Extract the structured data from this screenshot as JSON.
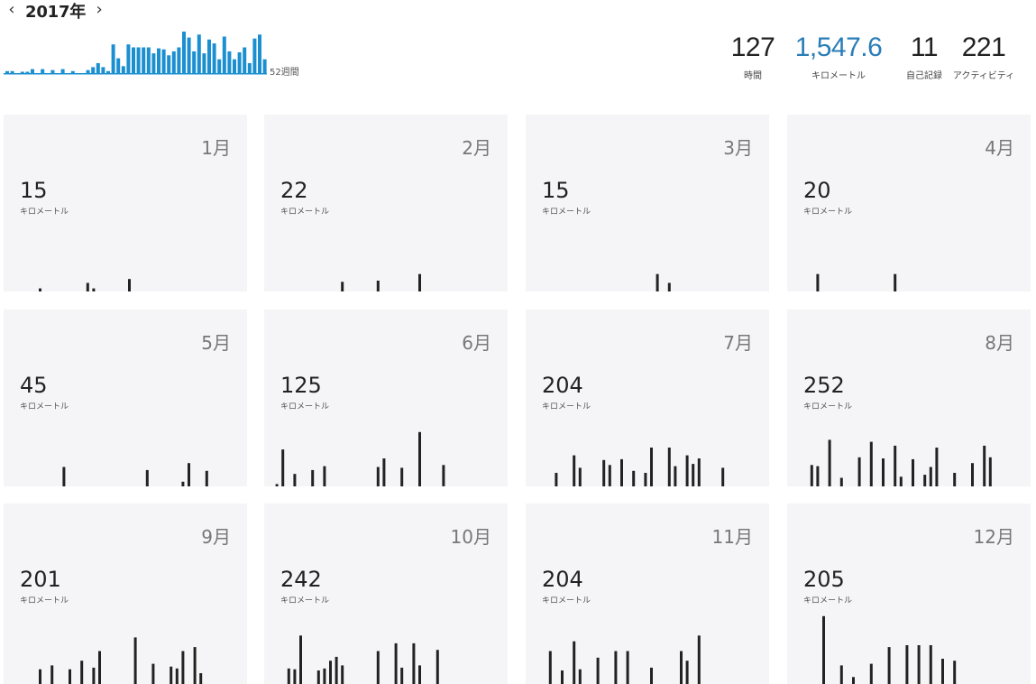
{
  "header": {
    "year": "2017年",
    "prev_icon": "chevron-left-icon",
    "next_icon": "chevron-right-icon",
    "weeks_label": "52週間",
    "weekly_values": [
      2,
      2,
      0,
      1,
      1,
      4,
      0,
      4,
      0,
      3,
      0,
      4,
      0,
      2,
      0,
      0,
      3,
      6,
      10,
      6,
      2,
      29,
      15,
      7,
      29,
      26,
      26,
      26,
      26,
      20,
      25,
      24,
      18,
      22,
      26,
      42,
      36,
      22,
      39,
      20,
      34,
      30,
      14,
      37,
      22,
      14,
      21,
      26,
      10,
      35,
      39,
      14
    ],
    "accent_color": "#1b8fd0"
  },
  "stats": {
    "time": {
      "value": "127",
      "label": "時間"
    },
    "distance": {
      "value": "1,547.6",
      "label": "キロメートル",
      "color": "#2a7db8"
    },
    "records": {
      "value": "11",
      "label": "自己記録"
    },
    "activities": {
      "value": "221",
      "label": "アクティビティ"
    }
  },
  "months": [
    {
      "label": "1月",
      "value": "15",
      "unit": "キロメートル",
      "bars": [
        {
          "d": 5,
          "v": 0.8
        },
        {
          "d": 13,
          "v": 2.2
        },
        {
          "d": 14,
          "v": 0.8
        },
        {
          "d": 20,
          "v": 3.2
        }
      ]
    },
    {
      "label": "2月",
      "value": "22",
      "unit": "キロメートル",
      "bars": [
        {
          "d": 12,
          "v": 2.5
        },
        {
          "d": 18,
          "v": 2.8
        },
        {
          "d": 25,
          "v": 4.5
        }
      ]
    },
    {
      "label": "3月",
      "value": "15",
      "unit": "キロメートル",
      "bars": [
        {
          "d": 21,
          "v": 4.5
        },
        {
          "d": 23,
          "v": 2.2
        }
      ]
    },
    {
      "label": "4月",
      "value": "20",
      "unit": "キロメートル",
      "bars": [
        {
          "d": 4,
          "v": 4.5
        },
        {
          "d": 17,
          "v": 4.5
        }
      ]
    },
    {
      "label": "5月",
      "value": "45",
      "unit": "キロメートル",
      "bars": [
        {
          "d": 9,
          "v": 5
        },
        {
          "d": 23,
          "v": 4.2
        },
        {
          "d": 29,
          "v": 1.2
        },
        {
          "d": 30,
          "v": 6
        },
        {
          "d": 33,
          "v": 4
        }
      ]
    },
    {
      "label": "6月",
      "value": "125",
      "unit": "キロメートル",
      "bars": [
        {
          "d": 1,
          "v": 0.6
        },
        {
          "d": 2,
          "v": 9.5
        },
        {
          "d": 4,
          "v": 3.2
        },
        {
          "d": 7,
          "v": 4.2
        },
        {
          "d": 9,
          "v": 5.2
        },
        {
          "d": 18,
          "v": 5
        },
        {
          "d": 19,
          "v": 7.2
        },
        {
          "d": 22,
          "v": 4.8
        },
        {
          "d": 25,
          "v": 14
        },
        {
          "d": 29,
          "v": 5.5
        }
      ]
    },
    {
      "label": "7月",
      "value": "204",
      "unit": "キロメートル",
      "bars": [
        {
          "d": 4,
          "v": 3.5
        },
        {
          "d": 7,
          "v": 8
        },
        {
          "d": 8,
          "v": 4.8
        },
        {
          "d": 12,
          "v": 6.8
        },
        {
          "d": 13,
          "v": 5.5
        },
        {
          "d": 15,
          "v": 7
        },
        {
          "d": 17,
          "v": 4
        },
        {
          "d": 19,
          "v": 3.5
        },
        {
          "d": 20,
          "v": 10
        },
        {
          "d": 23,
          "v": 10
        },
        {
          "d": 24,
          "v": 5.2
        },
        {
          "d": 26,
          "v": 8
        },
        {
          "d": 27,
          "v": 5.8
        },
        {
          "d": 28,
          "v": 7.2
        },
        {
          "d": 32,
          "v": 4.8
        }
      ]
    },
    {
      "label": "8月",
      "value": "252",
      "unit": "キロメートル",
      "bars": [
        {
          "d": 3,
          "v": 5.5
        },
        {
          "d": 4,
          "v": 5.2
        },
        {
          "d": 6,
          "v": 12
        },
        {
          "d": 8,
          "v": 2.2
        },
        {
          "d": 11,
          "v": 7.5
        },
        {
          "d": 13,
          "v": 11.5
        },
        {
          "d": 15,
          "v": 7.2
        },
        {
          "d": 17,
          "v": 10.5
        },
        {
          "d": 18,
          "v": 2.5
        },
        {
          "d": 20,
          "v": 7
        },
        {
          "d": 22,
          "v": 3
        },
        {
          "d": 23,
          "v": 5
        },
        {
          "d": 24,
          "v": 10
        },
        {
          "d": 27,
          "v": 3.5
        },
        {
          "d": 30,
          "v": 6
        },
        {
          "d": 32,
          "v": 10.5
        },
        {
          "d": 33,
          "v": 7.5
        }
      ]
    },
    {
      "label": "9月",
      "value": "201",
      "unit": "キロメートル",
      "bars": [
        {
          "d": 5,
          "v": 3.8
        },
        {
          "d": 7,
          "v": 4.8
        },
        {
          "d": 10,
          "v": 3.8
        },
        {
          "d": 12,
          "v": 6
        },
        {
          "d": 14,
          "v": 4.2
        },
        {
          "d": 15,
          "v": 8.5
        },
        {
          "d": 21,
          "v": 12
        },
        {
          "d": 24,
          "v": 5.2
        },
        {
          "d": 27,
          "v": 4.5
        },
        {
          "d": 28,
          "v": 4
        },
        {
          "d": 29,
          "v": 8.5
        },
        {
          "d": 31,
          "v": 9.5
        },
        {
          "d": 32,
          "v": 2.8
        }
      ]
    },
    {
      "label": "10月",
      "value": "242",
      "unit": "キロメートル",
      "bars": [
        {
          "d": 3,
          "v": 4
        },
        {
          "d": 4,
          "v": 3.8
        },
        {
          "d": 5,
          "v": 12.5
        },
        {
          "d": 8,
          "v": 3.5
        },
        {
          "d": 9,
          "v": 4
        },
        {
          "d": 10,
          "v": 6
        },
        {
          "d": 11,
          "v": 7
        },
        {
          "d": 12,
          "v": 4.8
        },
        {
          "d": 18,
          "v": 8.5
        },
        {
          "d": 21,
          "v": 10.5
        },
        {
          "d": 22,
          "v": 4.2
        },
        {
          "d": 24,
          "v": 10.5
        },
        {
          "d": 25,
          "v": 4.8
        },
        {
          "d": 28,
          "v": 8.8
        }
      ]
    },
    {
      "label": "11月",
      "value": "204",
      "unit": "キロメートル",
      "bars": [
        {
          "d": 3,
          "v": 8.5
        },
        {
          "d": 5,
          "v": 3.5
        },
        {
          "d": 7,
          "v": 11
        },
        {
          "d": 8,
          "v": 3.8
        },
        {
          "d": 11,
          "v": 6.8
        },
        {
          "d": 14,
          "v": 8.5
        },
        {
          "d": 16,
          "v": 8.5
        },
        {
          "d": 20,
          "v": 4.2
        },
        {
          "d": 25,
          "v": 8.5
        },
        {
          "d": 26,
          "v": 6
        },
        {
          "d": 28,
          "v": 12.5
        }
      ]
    },
    {
      "label": "12月",
      "value": "205",
      "unit": "キロメートル",
      "bars": [
        {
          "d": 5,
          "v": 17.5
        },
        {
          "d": 8,
          "v": 4.8
        },
        {
          "d": 10,
          "v": 1.8
        },
        {
          "d": 13,
          "v": 5.2
        },
        {
          "d": 16,
          "v": 9.5
        },
        {
          "d": 19,
          "v": 10
        },
        {
          "d": 21,
          "v": 10
        },
        {
          "d": 23,
          "v": 10
        },
        {
          "d": 25,
          "v": 6.5
        },
        {
          "d": 27,
          "v": 6
        }
      ]
    }
  ]
}
